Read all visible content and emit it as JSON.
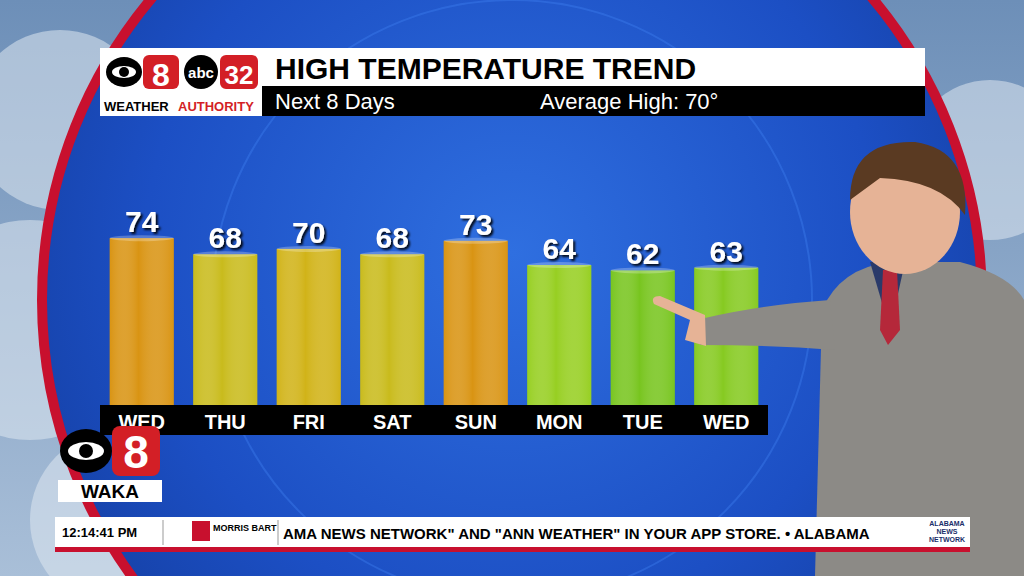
{
  "chart_data": {
    "type": "bar",
    "title": "HIGH TEMPERATURE TREND",
    "subtitle": "Next 8 Days",
    "annotation": "Average High: 70°",
    "categories": [
      "WED",
      "THU",
      "FRI",
      "SAT",
      "SUN",
      "MON",
      "TUE",
      "WED"
    ],
    "values": [
      74,
      68,
      70,
      68,
      73,
      64,
      62,
      63
    ],
    "colors": [
      "#d99413",
      "#c9bb1c",
      "#d1b318",
      "#c9bb1c",
      "#d99413",
      "#97cf22",
      "#78c51f",
      "#86ca21"
    ],
    "ylim": [
      12,
      80
    ],
    "data_labels": true,
    "tick_labels": false,
    "grid": false
  },
  "branding": {
    "station_number": "8",
    "network": "abc",
    "channel": "32",
    "weather": "WEATHER",
    "authority": "AUTHORITY",
    "corner_number": "8",
    "corner_call": "WAKA"
  },
  "ticker": {
    "time": "12:14:41 PM",
    "sponsor": "MORRIS BART",
    "text": "AMA NEWS NETWORK\" AND \"ANN WEATHER\" IN YOUR APP STORE.  •  ALABAMA",
    "network": "ALABAMA NEWS NETWORK"
  }
}
